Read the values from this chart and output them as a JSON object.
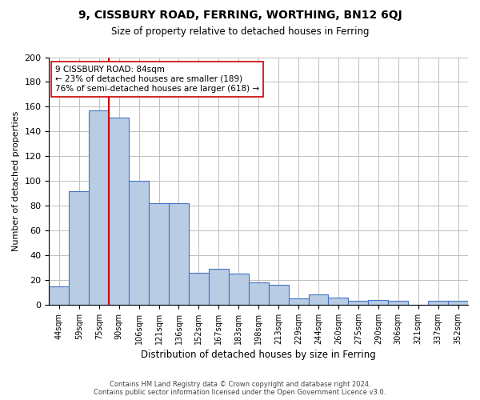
{
  "title": "9, CISSBURY ROAD, FERRING, WORTHING, BN12 6QJ",
  "subtitle": "Size of property relative to detached houses in Ferring",
  "xlabel": "Distribution of detached houses by size in Ferring",
  "ylabel": "Number of detached properties",
  "categories": [
    "44sqm",
    "59sqm",
    "75sqm",
    "90sqm",
    "106sqm",
    "121sqm",
    "136sqm",
    "152sqm",
    "167sqm",
    "183sqm",
    "198sqm",
    "213sqm",
    "229sqm",
    "244sqm",
    "260sqm",
    "275sqm",
    "290sqm",
    "306sqm",
    "321sqm",
    "337sqm",
    "352sqm"
  ],
  "values": [
    15,
    92,
    157,
    151,
    100,
    82,
    82,
    26,
    29,
    25,
    18,
    16,
    5,
    8,
    6,
    3,
    4,
    3,
    0,
    3,
    3
  ],
  "bar_color": "#b8cce4",
  "bar_edge_color": "#4472c4",
  "vline_color": "#cc0000",
  "vline_x": 3,
  "annotation_text": "9 CISSBURY ROAD: 84sqm\n← 23% of detached houses are smaller (189)\n76% of semi-detached houses are larger (618) →",
  "annotation_box_color": "#ffffff",
  "annotation_box_edge_color": "#cc0000",
  "ylim": [
    0,
    200
  ],
  "yticks": [
    0,
    20,
    40,
    60,
    80,
    100,
    120,
    140,
    160,
    180,
    200
  ],
  "footer_line1": "Contains HM Land Registry data © Crown copyright and database right 2024.",
  "footer_line2": "Contains public sector information licensed under the Open Government Licence v3.0.",
  "bg_color": "#ffffff",
  "grid_color": "#c0c0c0"
}
